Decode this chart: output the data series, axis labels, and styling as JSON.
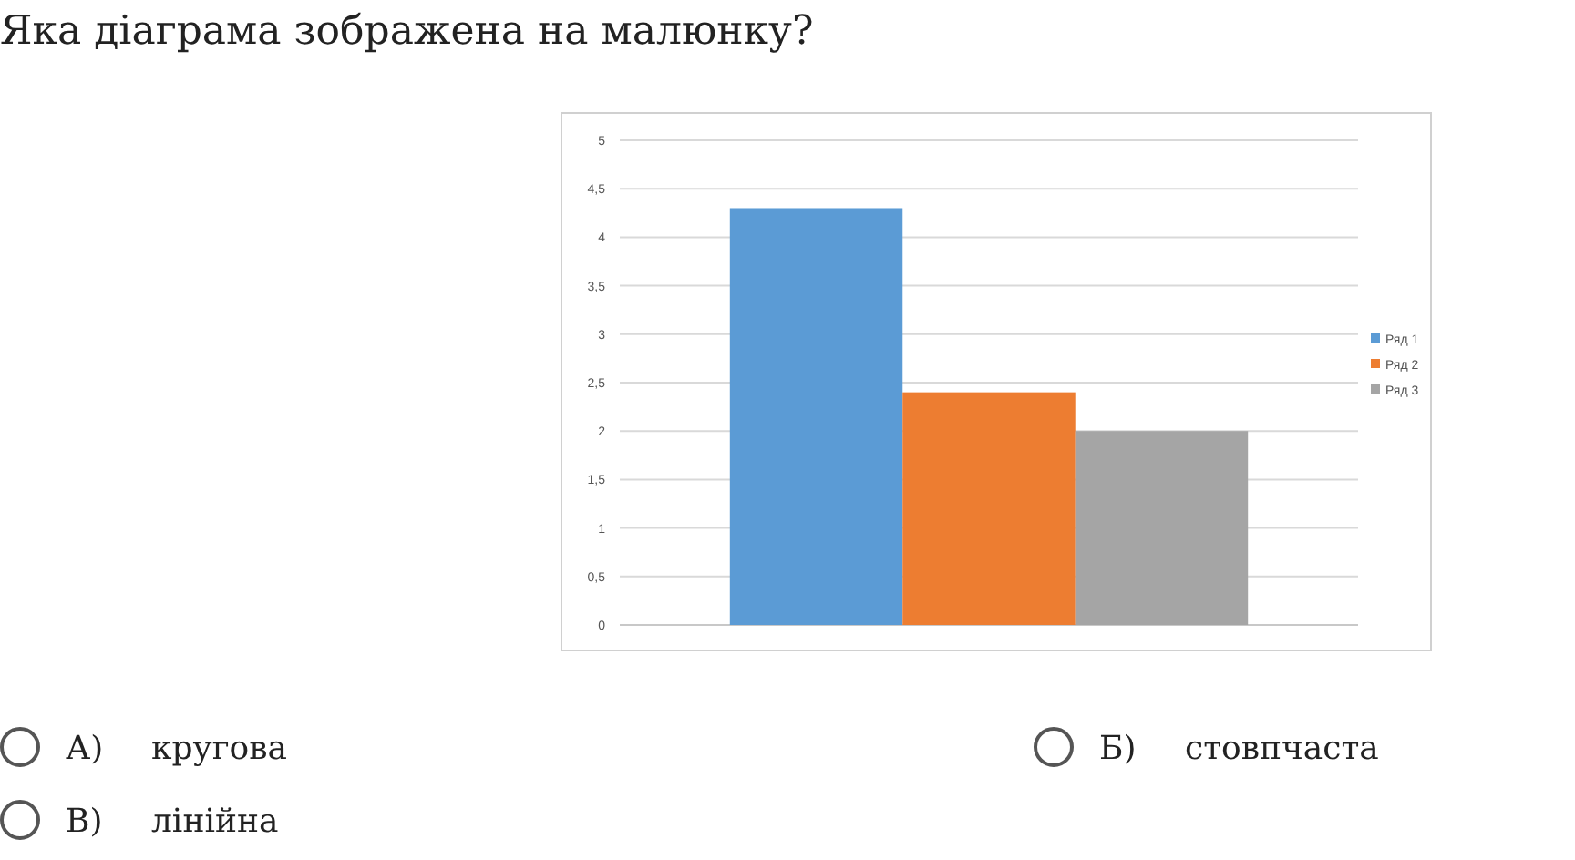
{
  "chart_data": {
    "type": "bar",
    "title": "Яка діаграма зображена на малюнку?",
    "categories": [
      null
    ],
    "series": [
      {
        "name": "Ряд 1",
        "color": "#5b9bd5",
        "values": [
          4.3
        ]
      },
      {
        "name": "Ряд 2",
        "color": "#ed7d31",
        "values": [
          2.4
        ]
      },
      {
        "name": "Ряд 3",
        "color": "#a5a5a5",
        "values": [
          2
        ]
      }
    ],
    "ylim": [
      0,
      5
    ],
    "yticks": [
      0,
      {
        "value": 0.5,
        "label": "0,5"
      },
      1,
      {
        "value": 1.5,
        "label": "1,5"
      },
      2,
      {
        "value": 2.5,
        "label": "2,5"
      },
      3,
      {
        "value": 3.5,
        "label": "3,5"
      },
      4,
      {
        "value": 4.5,
        "label": "4,5"
      },
      5
    ],
    "grid": "y",
    "legend": "right",
    "annotations": [
      "А)   кругова",
      "Б)   стовпчаста",
      "В)   лінійна"
    ]
  }
}
